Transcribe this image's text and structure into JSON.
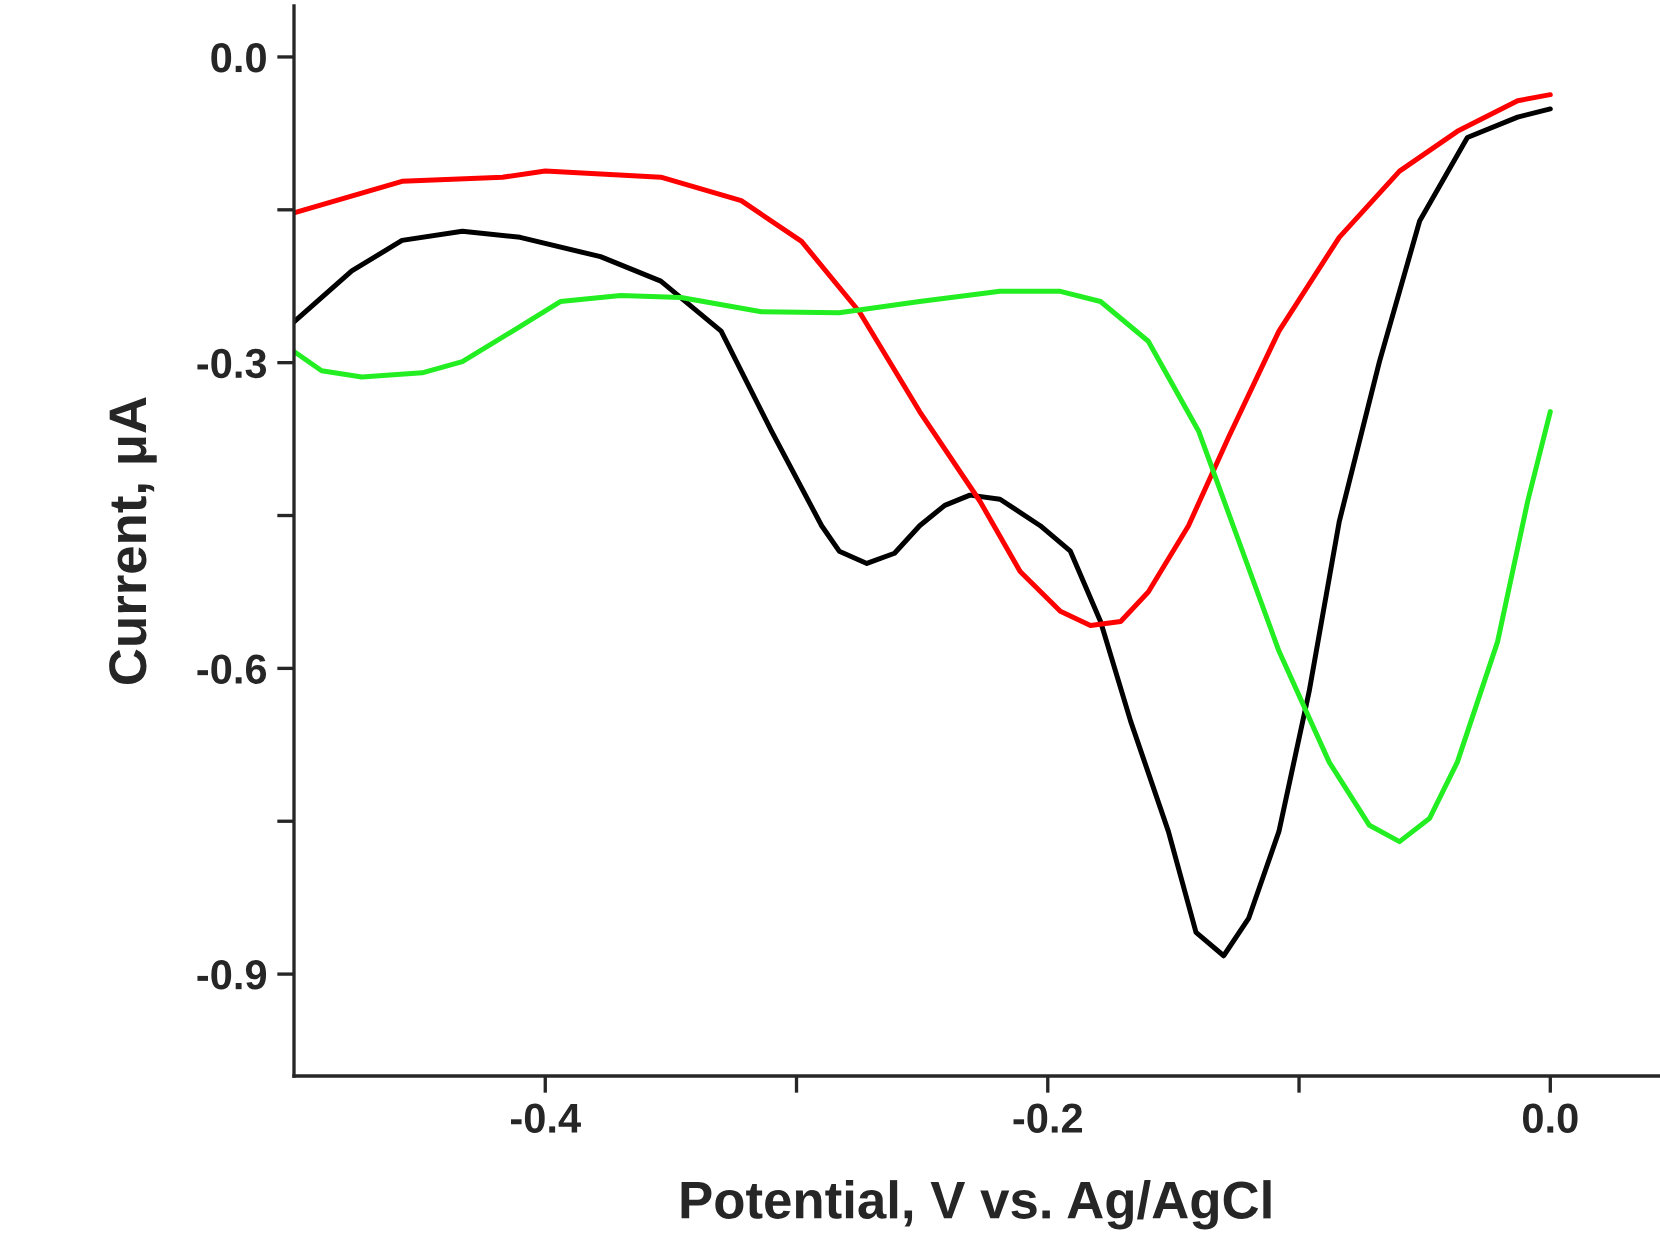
{
  "chart_data": {
    "type": "line",
    "xlabel": "Potential, V vs. Ag/AgCl",
    "ylabel": "Current, μA",
    "xlim": [
      -0.5,
      0.043
    ],
    "ylim": [
      -1.0,
      0.05
    ],
    "xticks": [
      -0.4,
      {
        "value": -0.3,
        "label": null
      },
      -0.2,
      {
        "value": -0.1,
        "label": null
      },
      {
        "value": 0,
        "label": "0.0"
      }
    ],
    "yticks": [
      {
        "value": 0,
        "label": "0.0"
      },
      {
        "value": -0.15,
        "label": null
      },
      -0.3,
      {
        "value": -0.45,
        "label": null
      },
      -0.6,
      {
        "value": -0.75,
        "label": null
      },
      -0.9
    ],
    "grid": false,
    "legend": false,
    "marker": "none",
    "line_style": "solid",
    "series": [
      {
        "color": "#000000",
        "x": [
          -0.5,
          -0.477,
          -0.457,
          -0.433,
          -0.41,
          -0.378,
          -0.354,
          -0.33,
          -0.31,
          -0.29,
          -0.283,
          -0.272,
          -0.261,
          -0.251,
          -0.241,
          -0.231,
          -0.219,
          -0.203,
          -0.191,
          -0.179,
          -0.167,
          -0.152,
          -0.141,
          -0.13,
          -0.12,
          -0.108,
          -0.096,
          -0.084,
          -0.068,
          -0.052,
          -0.033,
          -0.013,
          0.0
        ],
        "values": [
          -0.26,
          -0.21,
          -0.18,
          -0.171,
          -0.177,
          -0.196,
          -0.22,
          -0.269,
          -0.367,
          -0.46,
          -0.485,
          -0.497,
          -0.487,
          -0.46,
          -0.44,
          -0.43,
          -0.434,
          -0.46,
          -0.485,
          -0.554,
          -0.652,
          -0.76,
          -0.859,
          -0.882,
          -0.845,
          -0.76,
          -0.623,
          -0.456,
          -0.299,
          -0.161,
          -0.079,
          -0.059,
          -0.051
        ]
      },
      {
        "color": "#ff0000",
        "x": [
          -0.5,
          -0.457,
          -0.417,
          -0.4,
          -0.354,
          -0.322,
          -0.298,
          -0.275,
          -0.251,
          -0.227,
          -0.211,
          -0.195,
          -0.183,
          -0.171,
          -0.16,
          -0.144,
          -0.128,
          -0.108,
          -0.084,
          -0.06,
          -0.037,
          -0.013,
          0.0
        ],
        "values": [
          -0.153,
          -0.122,
          -0.118,
          -0.112,
          -0.118,
          -0.141,
          -0.181,
          -0.25,
          -0.348,
          -0.436,
          -0.505,
          -0.544,
          -0.558,
          -0.554,
          -0.525,
          -0.46,
          -0.373,
          -0.269,
          -0.177,
          -0.112,
          -0.073,
          -0.043,
          -0.037
        ]
      },
      {
        "color": "#22ee22",
        "x": [
          -0.5,
          -0.489,
          -0.473,
          -0.449,
          -0.433,
          -0.413,
          -0.394,
          -0.37,
          -0.346,
          -0.314,
          -0.283,
          -0.251,
          -0.219,
          -0.195,
          -0.179,
          -0.16,
          -0.14,
          -0.124,
          -0.108,
          -0.088,
          -0.072,
          -0.06,
          -0.048,
          -0.037,
          -0.021,
          -0.009,
          0.0
        ],
        "values": [
          -0.289,
          -0.308,
          -0.314,
          -0.31,
          -0.299,
          -0.269,
          -0.24,
          -0.234,
          -0.236,
          -0.25,
          -0.251,
          -0.24,
          -0.23,
          -0.23,
          -0.24,
          -0.279,
          -0.367,
          -0.475,
          -0.583,
          -0.692,
          -0.754,
          -0.77,
          -0.747,
          -0.692,
          -0.574,
          -0.436,
          -0.348
        ]
      }
    ]
  }
}
